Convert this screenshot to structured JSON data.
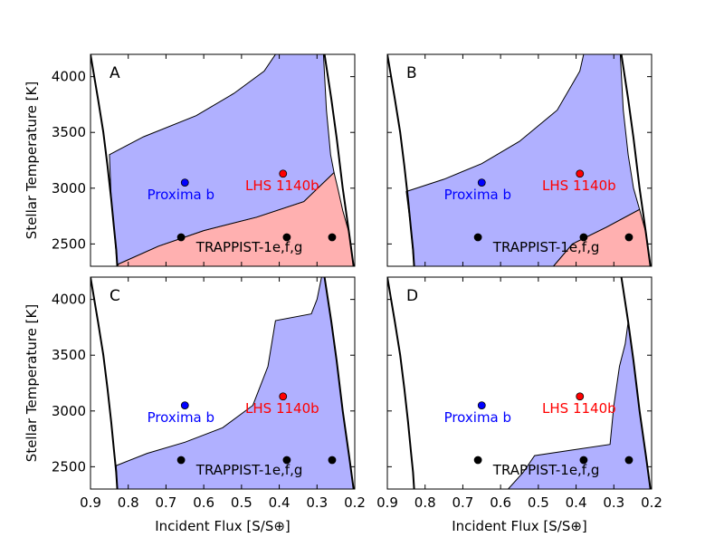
{
  "chart_data": {
    "type": "area",
    "figure": {
      "xlabel": "Incident Flux [S/S⊕]",
      "ylabel": "Stellar Temperature [K]",
      "xlim": [
        0.9,
        0.2
      ],
      "ylim": [
        2300,
        4200
      ],
      "x_ticks": [
        0.9,
        0.8,
        0.7,
        0.6,
        0.5,
        0.4,
        0.3,
        0.2
      ],
      "y_ticks": [
        2500,
        3000,
        3500,
        4000
      ],
      "colors": {
        "habitable_fill": "#b0b0ff",
        "secondary_fill": "#ffb0b0",
        "boundary": "#000000",
        "proxima": "#0000ff",
        "lhs": "#ff0000",
        "trappist": "#000000"
      }
    },
    "planets": [
      {
        "name": "Proxima b",
        "flux": 0.65,
        "teff": 3050,
        "color": "#0000ff",
        "label_x": 0.75,
        "label_y": 2950
      },
      {
        "name": "LHS 1140b",
        "flux": 0.39,
        "teff": 3130,
        "color": "#ff0000",
        "label_x": 0.49,
        "label_y": 3030
      },
      {
        "name": "TRAPPIST-1e",
        "flux": 0.66,
        "teff": 2560,
        "color": "#000000"
      },
      {
        "name": "TRAPPIST-1f",
        "flux": 0.38,
        "teff": 2560,
        "color": "#000000"
      },
      {
        "name": "TRAPPIST-1g",
        "flux": 0.26,
        "teff": 2560,
        "color": "#000000"
      }
    ],
    "trappist_label": {
      "text": "TRAPPIST-1e,f,g",
      "x": 0.62,
      "y": 2480
    },
    "panels": [
      {
        "label": "A",
        "inner_boundary": [
          [
            0.9,
            4200
          ],
          [
            0.88,
            3800
          ],
          [
            0.866,
            3500
          ],
          [
            0.855,
            3200
          ],
          [
            0.845,
            2900
          ],
          [
            0.838,
            2650
          ],
          [
            0.832,
            2450
          ],
          [
            0.829,
            2300
          ]
        ],
        "outer_boundary": [
          [
            0.28,
            4200
          ],
          [
            0.262,
            3800
          ],
          [
            0.248,
            3450
          ],
          [
            0.232,
            3000
          ],
          [
            0.215,
            2600
          ],
          [
            0.203,
            2300
          ]
        ],
        "habitable_polygon": [
          [
            0.832,
            4200
          ],
          [
            0.283,
            4200
          ],
          [
            0.275,
            3700
          ],
          [
            0.264,
            3300
          ],
          [
            0.255,
            3140
          ],
          [
            0.335,
            2880
          ],
          [
            0.46,
            2740
          ],
          [
            0.6,
            2620
          ],
          [
            0.72,
            2480
          ],
          [
            0.826,
            2320
          ],
          [
            0.829,
            2300
          ],
          [
            0.838,
            2650
          ],
          [
            0.845,
            2900
          ],
          [
            0.85,
            3300
          ],
          [
            0.76,
            3460
          ],
          [
            0.62,
            3650
          ],
          [
            0.52,
            3850
          ],
          [
            0.44,
            4050
          ],
          [
            0.41,
            4200
          ]
        ],
        "secondary_polygon": [
          [
            0.829,
            2300
          ],
          [
            0.826,
            2320
          ],
          [
            0.72,
            2480
          ],
          [
            0.6,
            2620
          ],
          [
            0.46,
            2740
          ],
          [
            0.335,
            2880
          ],
          [
            0.255,
            3140
          ],
          [
            0.245,
            3000
          ],
          [
            0.232,
            2800
          ],
          [
            0.215,
            2600
          ],
          [
            0.203,
            2300
          ]
        ]
      },
      {
        "label": "B",
        "inner_boundary": [
          [
            0.9,
            4200
          ],
          [
            0.88,
            3800
          ],
          [
            0.866,
            3500
          ],
          [
            0.855,
            3200
          ],
          [
            0.845,
            2900
          ],
          [
            0.838,
            2650
          ],
          [
            0.832,
            2450
          ],
          [
            0.829,
            2300
          ]
        ],
        "outer_boundary": [
          [
            0.28,
            4200
          ],
          [
            0.262,
            3800
          ],
          [
            0.248,
            3450
          ],
          [
            0.232,
            3000
          ],
          [
            0.215,
            2600
          ],
          [
            0.203,
            2300
          ]
        ],
        "habitable_polygon": [
          [
            0.832,
            4200
          ],
          [
            0.283,
            4200
          ],
          [
            0.275,
            3700
          ],
          [
            0.262,
            3300
          ],
          [
            0.248,
            3000
          ],
          [
            0.232,
            2810
          ],
          [
            0.32,
            2650
          ],
          [
            0.41,
            2500
          ],
          [
            0.46,
            2300
          ],
          [
            0.829,
            2300
          ],
          [
            0.838,
            2650
          ],
          [
            0.85,
            2970
          ],
          [
            0.75,
            3080
          ],
          [
            0.65,
            3220
          ],
          [
            0.55,
            3420
          ],
          [
            0.45,
            3700
          ],
          [
            0.39,
            4050
          ],
          [
            0.38,
            4200
          ]
        ],
        "secondary_polygon": [
          [
            0.46,
            2300
          ],
          [
            0.41,
            2500
          ],
          [
            0.32,
            2650
          ],
          [
            0.232,
            2810
          ],
          [
            0.215,
            2600
          ],
          [
            0.203,
            2300
          ]
        ]
      },
      {
        "label": "C",
        "inner_boundary": [
          [
            0.9,
            4200
          ],
          [
            0.88,
            3800
          ],
          [
            0.866,
            3500
          ],
          [
            0.855,
            3200
          ],
          [
            0.845,
            2900
          ],
          [
            0.838,
            2650
          ],
          [
            0.832,
            2450
          ],
          [
            0.829,
            2300
          ]
        ],
        "outer_boundary": [
          [
            0.28,
            4200
          ],
          [
            0.262,
            3800
          ],
          [
            0.248,
            3450
          ],
          [
            0.232,
            3000
          ],
          [
            0.215,
            2600
          ],
          [
            0.203,
            2300
          ]
        ],
        "habitable_polygon": [
          [
            0.832,
            2510
          ],
          [
            0.75,
            2620
          ],
          [
            0.65,
            2720
          ],
          [
            0.55,
            2850
          ],
          [
            0.47,
            3050
          ],
          [
            0.43,
            3400
          ],
          [
            0.41,
            3810
          ],
          [
            0.315,
            3870
          ],
          [
            0.3,
            4000
          ],
          [
            0.288,
            4200
          ],
          [
            0.28,
            4200
          ],
          [
            0.262,
            3800
          ],
          [
            0.248,
            3450
          ],
          [
            0.232,
            3000
          ],
          [
            0.215,
            2600
          ],
          [
            0.203,
            2300
          ],
          [
            0.829,
            2300
          ]
        ],
        "secondary_polygon": []
      },
      {
        "label": "D",
        "inner_boundary": [
          [
            0.9,
            4200
          ],
          [
            0.88,
            3800
          ],
          [
            0.866,
            3500
          ],
          [
            0.855,
            3200
          ],
          [
            0.845,
            2900
          ],
          [
            0.838,
            2650
          ],
          [
            0.832,
            2450
          ],
          [
            0.829,
            2300
          ]
        ],
        "outer_boundary": [
          [
            0.28,
            4200
          ],
          [
            0.262,
            3800
          ],
          [
            0.248,
            3450
          ],
          [
            0.232,
            3000
          ],
          [
            0.215,
            2600
          ],
          [
            0.203,
            2300
          ]
        ],
        "habitable_polygon": [
          [
            0.58,
            2300
          ],
          [
            0.54,
            2450
          ],
          [
            0.51,
            2600
          ],
          [
            0.41,
            2650
          ],
          [
            0.31,
            2700
          ],
          [
            0.3,
            3050
          ],
          [
            0.285,
            3400
          ],
          [
            0.27,
            3600
          ],
          [
            0.262,
            3800
          ],
          [
            0.248,
            3450
          ],
          [
            0.232,
            3000
          ],
          [
            0.215,
            2600
          ],
          [
            0.203,
            2300
          ]
        ],
        "secondary_polygon": []
      }
    ]
  }
}
